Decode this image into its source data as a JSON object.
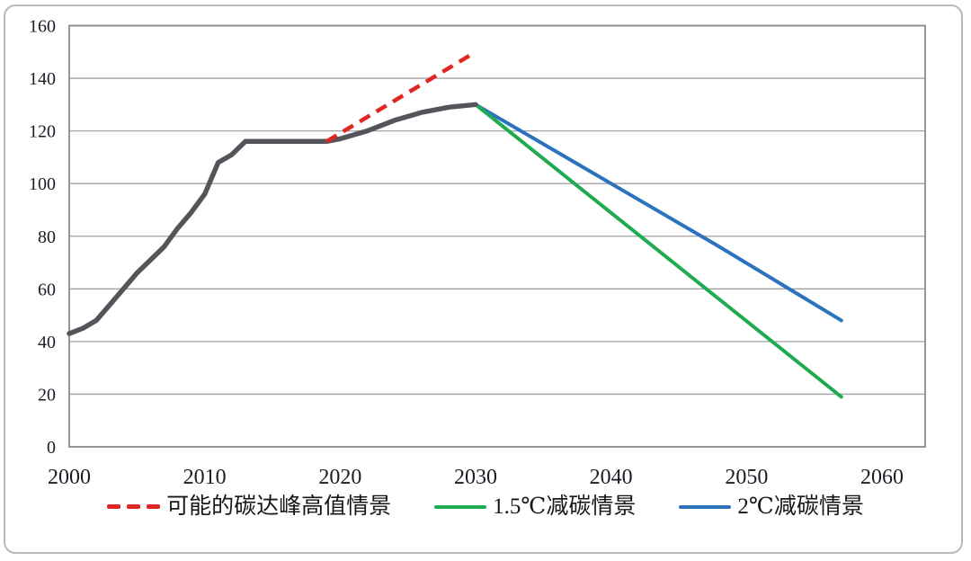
{
  "chart_data": {
    "type": "line",
    "title": "",
    "xlabel": "",
    "ylabel": "",
    "xlim": [
      2000,
      2063
    ],
    "ylim": [
      0,
      160
    ],
    "x_ticks": [
      "2000",
      "2010",
      "2020",
      "2030",
      "2040",
      "2050",
      "2060"
    ],
    "y_ticks": [
      "0",
      "20",
      "40",
      "60",
      "80",
      "100",
      "120",
      "140",
      "160"
    ],
    "grid": "horizontal-only",
    "legend_position": "bottom",
    "colors": {
      "axis_text": "#1c1c26",
      "gridline": "#a2a2a2",
      "plot_border": "#8a8a8a",
      "frame_border": "#b7b9bb",
      "background": "#ffffff"
    },
    "series": [
      {
        "id": "historical-emissions",
        "legend_label": null,
        "color": "#54555a",
        "style": "solid",
        "width": 5.5,
        "points": [
          [
            2000,
            43
          ],
          [
            2001,
            45
          ],
          [
            2002,
            48
          ],
          [
            2003,
            54
          ],
          [
            2004,
            60
          ],
          [
            2005,
            66
          ],
          [
            2006,
            71
          ],
          [
            2007,
            76
          ],
          [
            2008,
            83
          ],
          [
            2009,
            89
          ],
          [
            2010,
            96
          ],
          [
            2011,
            108
          ],
          [
            2012,
            111
          ],
          [
            2013,
            116
          ],
          [
            2014,
            116
          ],
          [
            2015,
            116
          ],
          [
            2016,
            116
          ],
          [
            2017,
            116
          ],
          [
            2018,
            116
          ],
          [
            2019,
            116
          ],
          [
            2020,
            117
          ],
          [
            2021,
            118.5
          ],
          [
            2022,
            120
          ],
          [
            2023,
            122
          ],
          [
            2024,
            124
          ],
          [
            2025,
            125.5
          ],
          [
            2026,
            127
          ],
          [
            2027,
            128
          ],
          [
            2028,
            129
          ],
          [
            2029,
            129.5
          ],
          [
            2030,
            130
          ]
        ]
      },
      {
        "id": "peak-high-scenario",
        "legend_label": "可能的碳达峰高值情景",
        "color": "#e02620",
        "style": "dashed",
        "width": 4.5,
        "points": [
          [
            2019,
            116
          ],
          [
            2030,
            150
          ]
        ]
      },
      {
        "id": "reduction-1p5c",
        "legend_label": "1.5℃减碳情景",
        "color": "#21ab50",
        "style": "solid",
        "width": 4,
        "points": [
          [
            2030,
            130
          ],
          [
            2057,
            19
          ]
        ]
      },
      {
        "id": "reduction-2c",
        "legend_label": "2℃减碳情景",
        "color": "#2b74bd",
        "style": "solid",
        "width": 4,
        "points": [
          [
            2030,
            130
          ],
          [
            2040,
            100
          ],
          [
            2048,
            76
          ],
          [
            2057,
            48
          ]
        ]
      }
    ]
  }
}
